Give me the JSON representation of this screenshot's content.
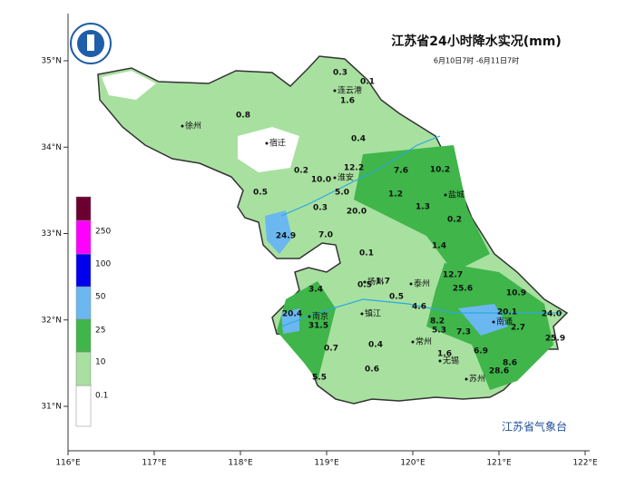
{
  "header": {
    "title": "江苏省24小时降水实况(mm)",
    "subtitle": "6月10日7时 -6月11日7时"
  },
  "axes": {
    "xticks": [
      {
        "value": 116,
        "label": "116°E"
      },
      {
        "value": 117,
        "label": "117°E"
      },
      {
        "value": 118,
        "label": "118°E"
      },
      {
        "value": 119,
        "label": "119°E"
      },
      {
        "value": 120,
        "label": "120°E"
      },
      {
        "value": 121,
        "label": "121°E"
      },
      {
        "value": 122,
        "label": "122°E"
      }
    ],
    "yticks": [
      {
        "value": 35,
        "label": "35°N"
      },
      {
        "value": 34,
        "label": "34°N"
      },
      {
        "value": 33,
        "label": "33°N"
      },
      {
        "value": 32,
        "label": "32°N"
      },
      {
        "value": 31,
        "label": "31°N"
      }
    ]
  },
  "legend": {
    "colors": [
      "#ffffff",
      "#a8e0a0",
      "#3fb54a",
      "#6bb8f0",
      "#0000ee",
      "#ff00ff",
      "#6b0030"
    ],
    "values": [
      0.1,
      10,
      25,
      50,
      100,
      250
    ]
  },
  "cities": [
    "连云港",
    "徐州",
    "宿迁",
    "淮安",
    "盐城",
    "扬州",
    "泰州",
    "南京",
    "镇江",
    "常州",
    "南通",
    "无锡",
    "苏州"
  ],
  "rainfall": [
    "0.3",
    "0.1",
    "1.6",
    "0.8",
    "0.4",
    "0.2",
    "12.2",
    "7.6",
    "10.2",
    "10.0",
    "5.0",
    "0.5",
    "1.2",
    "1.3",
    "0.3",
    "20.0",
    "0.2",
    "24.9",
    "7.0",
    "1.4",
    "0.1",
    "12.7",
    "3.4",
    "0.5",
    "1.7",
    "25.6",
    "10.9",
    "0.5",
    "4.6",
    "20.4",
    "20.1",
    "24.0",
    "31.5",
    "8.2",
    "5.3",
    "7.3",
    "2.7",
    "25.9",
    "0.7",
    "0.4",
    "6.9",
    "1.6",
    "8.6",
    "28.6",
    "5.5",
    "0.6"
  ],
  "credit": "江苏省气象台"
}
